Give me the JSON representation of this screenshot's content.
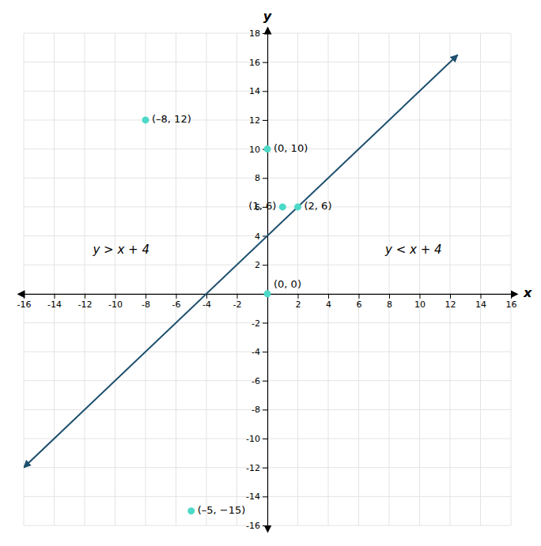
{
  "chart_data": {
    "type": "scatter",
    "x_label": "x",
    "y_label": "y",
    "xlim": [
      -16,
      16
    ],
    "ylim": [
      -16,
      18
    ],
    "xticks": [
      -16,
      -14,
      -12,
      -10,
      -8,
      -6,
      -4,
      -2,
      2,
      4,
      6,
      8,
      10,
      12,
      14,
      16
    ],
    "yticks": [
      -16,
      -14,
      -12,
      -10,
      -8,
      -6,
      -4,
      -2,
      2,
      4,
      6,
      8,
      10,
      12,
      14,
      16,
      18
    ],
    "grid": true,
    "series": [
      {
        "type": "line",
        "color": "#1d4f6e",
        "x": [
          -16,
          12.5
        ],
        "values": [
          -12,
          16.5
        ]
      },
      {
        "type": "scatter",
        "color": "#4dd9c8",
        "data_labels": true,
        "x": [
          -8,
          -5,
          0,
          1,
          2,
          0
        ],
        "values": [
          12,
          -15,
          0,
          6,
          6,
          10
        ],
        "value_labels": [
          "(–8, 12)",
          "(–5, −15)",
          "(0, 0)",
          "(1, 6)",
          "(2, 6)",
          "(0, 10)"
        ]
      }
    ],
    "annotations": [
      "y > x + 4",
      "y < x + 4"
    ]
  }
}
